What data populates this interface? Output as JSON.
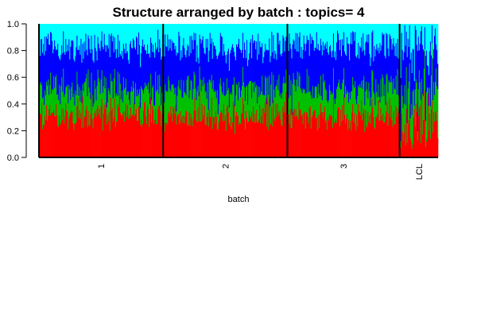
{
  "chart_data": {
    "type": "bar",
    "subtype": "stacked-structure-plot",
    "title": "Structure arranged by batch : topics= 4",
    "xlabel": "batch",
    "ylabel": "",
    "ylim": [
      0,
      1
    ],
    "y_ticks": [
      0.0,
      0.2,
      0.4,
      0.6,
      0.8,
      1.0
    ],
    "y_tick_labels": [
      "0.0",
      "0.2",
      "0.4",
      "0.6",
      "0.8",
      "1.0"
    ],
    "grid": false,
    "legend": "none",
    "groups": [
      {
        "label": "1",
        "samples": 155
      },
      {
        "label": "2",
        "samples": 155
      },
      {
        "label": "3",
        "samples": 140
      },
      {
        "label": "LCL",
        "samples": 48
      }
    ],
    "series": [
      {
        "topic": 1,
        "color": "#ff0000",
        "mean_by_group": [
          0.32,
          0.31,
          0.3,
          0.27
        ]
      },
      {
        "topic": 2,
        "color": "#00c000",
        "mean_by_group": [
          0.2,
          0.21,
          0.21,
          0.22
        ]
      },
      {
        "topic": 3,
        "color": "#0000ff",
        "mean_by_group": [
          0.31,
          0.3,
          0.32,
          0.35
        ]
      },
      {
        "topic": 4,
        "color": "#00ffff",
        "mean_by_group": [
          0.17,
          0.18,
          0.17,
          0.16
        ]
      }
    ]
  }
}
